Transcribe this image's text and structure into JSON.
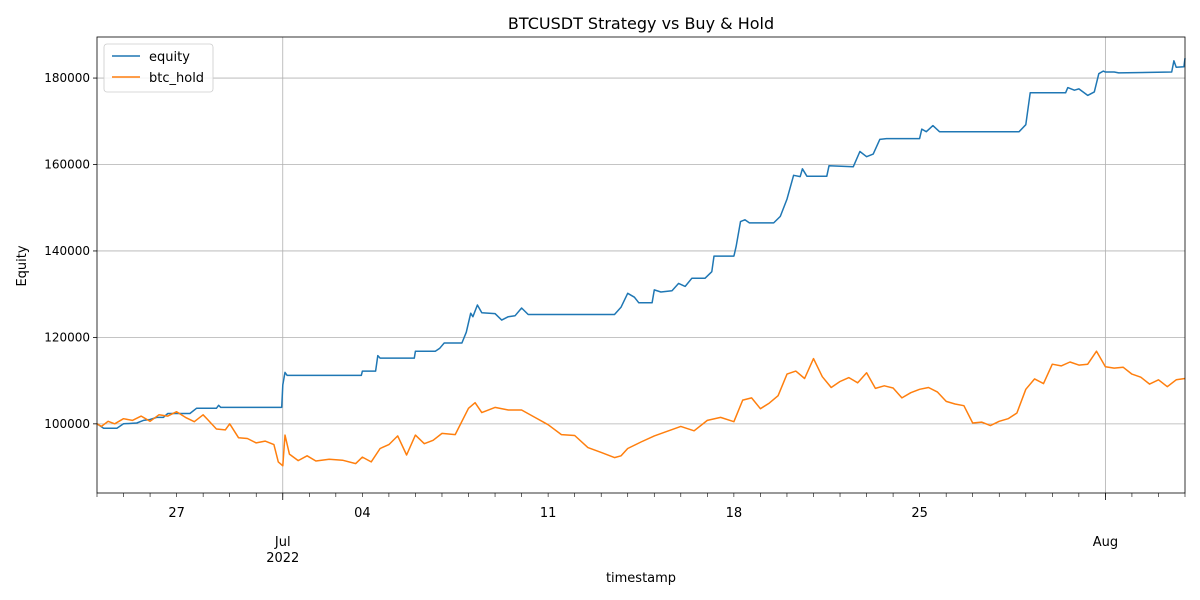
{
  "chart_data": {
    "type": "line",
    "title": "BTCUSDT Strategy vs Buy & Hold",
    "xlabel": "timestamp",
    "ylabel": "Equity",
    "xlim": [
      "2022-06-24",
      "2022-08-04"
    ],
    "ylim": [
      84000,
      189500
    ],
    "grid": true,
    "legend_position": "upper-left",
    "x_major_ticks": [
      {
        "date": "2022-07-01",
        "label": "Jul",
        "sublabel": "2022"
      },
      {
        "date": "2022-08-01",
        "label": "Aug",
        "sublabel": ""
      }
    ],
    "x_minor_ticks": [
      {
        "date": "2022-06-27",
        "label": "27"
      },
      {
        "date": "2022-07-04",
        "label": "04"
      },
      {
        "date": "2022-07-11",
        "label": "11"
      },
      {
        "date": "2022-07-18",
        "label": "18"
      },
      {
        "date": "2022-07-25",
        "label": "25"
      }
    ],
    "y_ticks": [
      100000,
      120000,
      140000,
      160000,
      180000
    ],
    "series": [
      {
        "name": "equity",
        "color": "#1f77b4",
        "points": [
          [
            "2022-06-24 00:00",
            100000
          ],
          [
            "2022-06-24 06:00",
            99000
          ],
          [
            "2022-06-24 18:00",
            99000
          ],
          [
            "2022-06-25 00:00",
            100000
          ],
          [
            "2022-06-25 12:00",
            100200
          ],
          [
            "2022-06-25 18:00",
            100800
          ],
          [
            "2022-06-26 00:00",
            101000
          ],
          [
            "2022-06-26 06:00",
            101500
          ],
          [
            "2022-06-26 12:00",
            101500
          ],
          [
            "2022-06-26 16:00",
            102400
          ],
          [
            "2022-06-27 12:00",
            102400
          ],
          [
            "2022-06-27 18:00",
            103600
          ],
          [
            "2022-06-28 12:00",
            103600
          ],
          [
            "2022-06-28 14:00",
            104300
          ],
          [
            "2022-06-28 16:00",
            103800
          ],
          [
            "2022-06-30 23:00",
            103800
          ],
          [
            "2022-07-01 00:00",
            109000
          ],
          [
            "2022-07-01 02:00",
            111900
          ],
          [
            "2022-07-01 04:00",
            111200
          ],
          [
            "2022-07-03 23:00",
            111200
          ],
          [
            "2022-07-04 00:00",
            112200
          ],
          [
            "2022-07-04 12:00",
            112200
          ],
          [
            "2022-07-04 14:00",
            115800
          ],
          [
            "2022-07-04 16:00",
            115200
          ],
          [
            "2022-07-05 23:00",
            115200
          ],
          [
            "2022-07-06 00:00",
            116800
          ],
          [
            "2022-07-06 18:00",
            116800
          ],
          [
            "2022-07-06 22:00",
            117500
          ],
          [
            "2022-07-07 02:00",
            118700
          ],
          [
            "2022-07-07 18:00",
            118700
          ],
          [
            "2022-07-07 22:00",
            121200
          ],
          [
            "2022-07-08 02:00",
            125600
          ],
          [
            "2022-07-08 04:00",
            124800
          ],
          [
            "2022-07-08 08:00",
            127500
          ],
          [
            "2022-07-08 12:00",
            125700
          ],
          [
            "2022-07-09 00:00",
            125500
          ],
          [
            "2022-07-09 06:00",
            124000
          ],
          [
            "2022-07-09 12:00",
            124800
          ],
          [
            "2022-07-09 18:00",
            125000
          ],
          [
            "2022-07-10 00:00",
            126800
          ],
          [
            "2022-07-10 06:00",
            125300
          ],
          [
            "2022-07-13 12:00",
            125300
          ],
          [
            "2022-07-13 18:00",
            127000
          ],
          [
            "2022-07-14 00:00",
            130200
          ],
          [
            "2022-07-14 06:00",
            129300
          ],
          [
            "2022-07-14 10:00",
            128000
          ],
          [
            "2022-07-14 22:00",
            128000
          ],
          [
            "2022-07-15 00:00",
            131000
          ],
          [
            "2022-07-15 06:00",
            130500
          ],
          [
            "2022-07-15 16:00",
            130800
          ],
          [
            "2022-07-15 22:00",
            132500
          ],
          [
            "2022-07-16 04:00",
            131800
          ],
          [
            "2022-07-16 10:00",
            133700
          ],
          [
            "2022-07-16 22:00",
            133700
          ],
          [
            "2022-07-17 04:00",
            135200
          ],
          [
            "2022-07-17 06:00",
            138800
          ],
          [
            "2022-07-18 00:00",
            138800
          ],
          [
            "2022-07-18 02:00",
            141000
          ],
          [
            "2022-07-18 06:00",
            146800
          ],
          [
            "2022-07-18 10:00",
            147200
          ],
          [
            "2022-07-18 14:00",
            146500
          ],
          [
            "2022-07-19 12:00",
            146500
          ],
          [
            "2022-07-19 18:00",
            148000
          ],
          [
            "2022-07-20 00:00",
            152000
          ],
          [
            "2022-07-20 06:00",
            157500
          ],
          [
            "2022-07-20 12:00",
            157200
          ],
          [
            "2022-07-20 14:00",
            159000
          ],
          [
            "2022-07-20 18:00",
            157300
          ],
          [
            "2022-07-21 12:00",
            157300
          ],
          [
            "2022-07-21 14:00",
            159700
          ],
          [
            "2022-07-22 12:00",
            159500
          ],
          [
            "2022-07-22 18:00",
            163000
          ],
          [
            "2022-07-23 00:00",
            161800
          ],
          [
            "2022-07-23 06:00",
            162400
          ],
          [
            "2022-07-23 12:00",
            165800
          ],
          [
            "2022-07-23 18:00",
            166000
          ],
          [
            "2022-07-25 00:00",
            166000
          ],
          [
            "2022-07-25 02:00",
            168200
          ],
          [
            "2022-07-25 06:00",
            167600
          ],
          [
            "2022-07-25 12:00",
            169000
          ],
          [
            "2022-07-25 18:00",
            167600
          ],
          [
            "2022-07-28 18:00",
            167600
          ],
          [
            "2022-07-29 00:00",
            169200
          ],
          [
            "2022-07-29 04:00",
            176600
          ],
          [
            "2022-07-30 12:00",
            176600
          ],
          [
            "2022-07-30 14:00",
            177800
          ],
          [
            "2022-07-30 20:00",
            177200
          ],
          [
            "2022-07-31 00:00",
            177500
          ],
          [
            "2022-07-31 08:00",
            176000
          ],
          [
            "2022-07-31 14:00",
            176800
          ],
          [
            "2022-07-31 18:00",
            181000
          ],
          [
            "2022-07-31 22:00",
            181600
          ],
          [
            "2022-08-01 00:00",
            181400
          ],
          [
            "2022-08-01 08:00",
            181400
          ],
          [
            "2022-08-01 12:00",
            181200
          ],
          [
            "2022-08-03 12:00",
            181400
          ],
          [
            "2022-08-03 14:00",
            184000
          ],
          [
            "2022-08-03 16:00",
            182500
          ],
          [
            "2022-08-03 23:00",
            182600
          ],
          [
            "2022-08-04 00:00",
            184600
          ]
        ]
      },
      {
        "name": "btc_hold",
        "color": "#ff7f0e",
        "points": [
          [
            "2022-06-24 00:00",
            100000
          ],
          [
            "2022-06-24 04:00",
            99400
          ],
          [
            "2022-06-24 10:00",
            100600
          ],
          [
            "2022-06-24 16:00",
            100000
          ],
          [
            "2022-06-25 00:00",
            101200
          ],
          [
            "2022-06-25 08:00",
            100800
          ],
          [
            "2022-06-25 16:00",
            101800
          ],
          [
            "2022-06-26 00:00",
            100600
          ],
          [
            "2022-06-26 08:00",
            102100
          ],
          [
            "2022-06-26 16:00",
            101800
          ],
          [
            "2022-06-27 00:00",
            102800
          ],
          [
            "2022-06-27 08:00",
            101500
          ],
          [
            "2022-06-27 16:00",
            100500
          ],
          [
            "2022-06-28 00:00",
            102100
          ],
          [
            "2022-06-28 04:00",
            101000
          ],
          [
            "2022-06-28 12:00",
            98800
          ],
          [
            "2022-06-28 20:00",
            98600
          ],
          [
            "2022-06-29 00:00",
            100000
          ],
          [
            "2022-06-29 08:00",
            96800
          ],
          [
            "2022-06-29 16:00",
            96600
          ],
          [
            "2022-06-30 00:00",
            95600
          ],
          [
            "2022-06-30 08:00",
            96000
          ],
          [
            "2022-06-30 16:00",
            95200
          ],
          [
            "2022-06-30 20:00",
            91200
          ],
          [
            "2022-07-01 00:00",
            90300
          ],
          [
            "2022-07-01 02:00",
            97400
          ],
          [
            "2022-07-01 06:00",
            93000
          ],
          [
            "2022-07-01 14:00",
            91500
          ],
          [
            "2022-07-01 22:00",
            92600
          ],
          [
            "2022-07-02 06:00",
            91400
          ],
          [
            "2022-07-02 18:00",
            91800
          ],
          [
            "2022-07-03 06:00",
            91600
          ],
          [
            "2022-07-03 18:00",
            90800
          ],
          [
            "2022-07-04 00:00",
            92300
          ],
          [
            "2022-07-04 08:00",
            91200
          ],
          [
            "2022-07-04 16:00",
            94300
          ],
          [
            "2022-07-05 00:00",
            95200
          ],
          [
            "2022-07-05 08:00",
            97200
          ],
          [
            "2022-07-05 16:00",
            92800
          ],
          [
            "2022-07-06 00:00",
            97400
          ],
          [
            "2022-07-06 08:00",
            95400
          ],
          [
            "2022-07-06 16:00",
            96200
          ],
          [
            "2022-07-07 00:00",
            97800
          ],
          [
            "2022-07-07 12:00",
            97500
          ],
          [
            "2022-07-08 00:00",
            103600
          ],
          [
            "2022-07-08 06:00",
            104900
          ],
          [
            "2022-07-08 12:00",
            102600
          ],
          [
            "2022-07-09 00:00",
            103800
          ],
          [
            "2022-07-09 12:00",
            103200
          ],
          [
            "2022-07-10 00:00",
            103200
          ],
          [
            "2022-07-10 12:00",
            101500
          ],
          [
            "2022-07-11 00:00",
            99800
          ],
          [
            "2022-07-11 12:00",
            97500
          ],
          [
            "2022-07-12 00:00",
            97300
          ],
          [
            "2022-07-12 12:00",
            94500
          ],
          [
            "2022-07-13 00:00",
            93400
          ],
          [
            "2022-07-13 12:00",
            92200
          ],
          [
            "2022-07-13 18:00",
            92600
          ],
          [
            "2022-07-14 00:00",
            94300
          ],
          [
            "2022-07-14 12:00",
            95800
          ],
          [
            "2022-07-15 00:00",
            97200
          ],
          [
            "2022-07-15 12:00",
            98300
          ],
          [
            "2022-07-16 00:00",
            99400
          ],
          [
            "2022-07-16 12:00",
            98400
          ],
          [
            "2022-07-17 00:00",
            100800
          ],
          [
            "2022-07-17 12:00",
            101500
          ],
          [
            "2022-07-18 00:00",
            100500
          ],
          [
            "2022-07-18 08:00",
            105500
          ],
          [
            "2022-07-18 16:00",
            106000
          ],
          [
            "2022-07-19 00:00",
            103500
          ],
          [
            "2022-07-19 08:00",
            104800
          ],
          [
            "2022-07-19 16:00",
            106500
          ],
          [
            "2022-07-20 00:00",
            111500
          ],
          [
            "2022-07-20 08:00",
            112200
          ],
          [
            "2022-07-20 16:00",
            110500
          ],
          [
            "2022-07-21 00:00",
            115100
          ],
          [
            "2022-07-21 08:00",
            110900
          ],
          [
            "2022-07-21 16:00",
            108400
          ],
          [
            "2022-07-22 00:00",
            109800
          ],
          [
            "2022-07-22 08:00",
            110700
          ],
          [
            "2022-07-22 16:00",
            109500
          ],
          [
            "2022-07-23 00:00",
            111800
          ],
          [
            "2022-07-23 08:00",
            108200
          ],
          [
            "2022-07-23 16:00",
            108800
          ],
          [
            "2022-07-24 00:00",
            108300
          ],
          [
            "2022-07-24 08:00",
            106000
          ],
          [
            "2022-07-24 16:00",
            107200
          ],
          [
            "2022-07-25 00:00",
            108000
          ],
          [
            "2022-07-25 08:00",
            108400
          ],
          [
            "2022-07-25 16:00",
            107400
          ],
          [
            "2022-07-26 00:00",
            105200
          ],
          [
            "2022-07-26 08:00",
            104600
          ],
          [
            "2022-07-26 16:00",
            104200
          ],
          [
            "2022-07-27 00:00",
            100200
          ],
          [
            "2022-07-27 08:00",
            100400
          ],
          [
            "2022-07-27 16:00",
            99600
          ],
          [
            "2022-07-28 00:00",
            100600
          ],
          [
            "2022-07-28 08:00",
            101200
          ],
          [
            "2022-07-28 16:00",
            102500
          ],
          [
            "2022-07-29 00:00",
            108000
          ],
          [
            "2022-07-29 08:00",
            110400
          ],
          [
            "2022-07-29 16:00",
            109300
          ],
          [
            "2022-07-30 00:00",
            113800
          ],
          [
            "2022-07-30 08:00",
            113400
          ],
          [
            "2022-07-30 16:00",
            114300
          ],
          [
            "2022-07-31 00:00",
            113600
          ],
          [
            "2022-07-31 08:00",
            113800
          ],
          [
            "2022-07-31 16:00",
            116800
          ],
          [
            "2022-08-01 00:00",
            113200
          ],
          [
            "2022-08-01 08:00",
            112900
          ],
          [
            "2022-08-01 16:00",
            113100
          ],
          [
            "2022-08-02 00:00",
            111500
          ],
          [
            "2022-08-02 08:00",
            110800
          ],
          [
            "2022-08-02 16:00",
            109200
          ],
          [
            "2022-08-03 00:00",
            110200
          ],
          [
            "2022-08-03 08:00",
            108600
          ],
          [
            "2022-08-03 16:00",
            110200
          ],
          [
            "2022-08-04 00:00",
            110500
          ]
        ]
      }
    ]
  }
}
